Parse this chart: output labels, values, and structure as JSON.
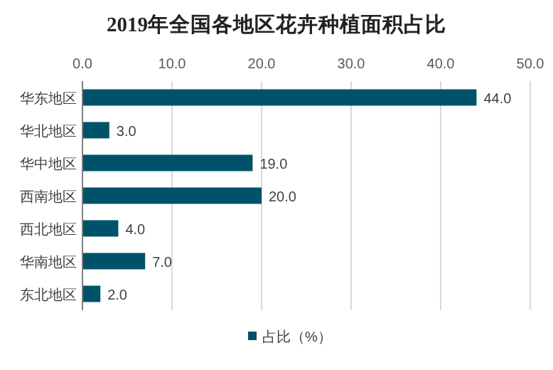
{
  "chart_data": {
    "type": "bar",
    "orientation": "horizontal",
    "title": "2019年全国各地区花卉种植面积占比",
    "categories": [
      "华东地区",
      "华北地区",
      "华中地区",
      "西南地区",
      "西北地区",
      "华南地区",
      "东北地区"
    ],
    "series": [
      {
        "name": "占比（%）",
        "color": "#00526b",
        "values": [
          44,
          3,
          19,
          20,
          4,
          7,
          2
        ],
        "value_labels": [
          "44.0",
          "3.0",
          "19.0",
          "20.0",
          "4.0",
          "7.0",
          "2.0"
        ]
      }
    ],
    "xlim": [
      0,
      50
    ],
    "xticks": [
      {
        "value": 0,
        "label": "0.0"
      },
      {
        "value": 10,
        "label": "10.0"
      },
      {
        "value": 20,
        "label": "20.0"
      },
      {
        "value": 30,
        "label": "30.0"
      },
      {
        "value": 40,
        "label": "40.0"
      },
      {
        "value": 50,
        "label": "50.0"
      }
    ],
    "grid": "x",
    "legend": "bottom"
  }
}
